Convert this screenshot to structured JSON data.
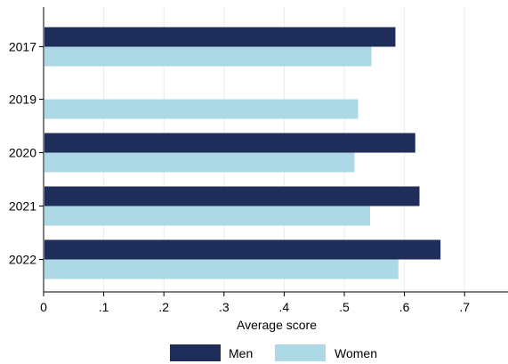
{
  "chart_data": {
    "type": "bar",
    "orientation": "horizontal",
    "categories": [
      "2017",
      "2019",
      "2020",
      "2021",
      "2022"
    ],
    "series": [
      {
        "name": "Men",
        "color": "#1f2d5a",
        "values": [
          0.585,
          null,
          0.618,
          0.625,
          0.66
        ]
      },
      {
        "name": "Women",
        "color": "#add8e6",
        "values": [
          0.545,
          0.523,
          0.517,
          0.543,
          0.59
        ]
      }
    ],
    "title": "",
    "xlabel": "Average score",
    "ylabel": "",
    "xlim": [
      0,
      0.77
    ],
    "x_ticks": [
      {
        "value": 0,
        "label": "0"
      },
      {
        "value": 0.1,
        "label": ".1"
      },
      {
        "value": 0.2,
        "label": ".2"
      },
      {
        "value": 0.3,
        "label": ".3"
      },
      {
        "value": 0.4,
        "label": ".4"
      },
      {
        "value": 0.5,
        "label": ".5"
      },
      {
        "value": 0.6,
        "label": ".6"
      },
      {
        "value": 0.7,
        "label": ".7"
      }
    ],
    "grid": true,
    "grid_axis": "x",
    "legend_position": "bottom"
  }
}
